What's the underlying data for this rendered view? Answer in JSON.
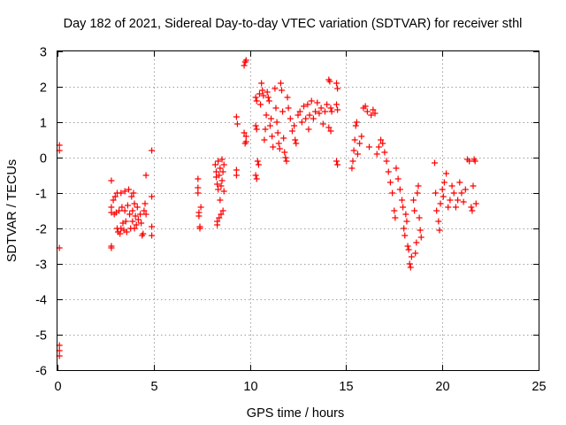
{
  "chart_data": {
    "type": "scatter",
    "title": "Day 182 of 2021, Sidereal Day-to-day VTEC variation (SDTVAR) for receiver sthl",
    "xlabel": "GPS time / hours",
    "ylabel": "SDTVAR / TECUs",
    "xlim": [
      0,
      25
    ],
    "ylim": [
      -6,
      3
    ],
    "xticks": [
      0,
      5,
      10,
      15,
      20,
      25
    ],
    "yticks": [
      -6,
      -5,
      -4,
      -3,
      -2,
      -1,
      0,
      1,
      2,
      3
    ],
    "grid": true,
    "marker": "+",
    "color": "#ff0000",
    "series": [
      {
        "name": "SDTVAR",
        "points": [
          [
            0.1,
            0.35
          ],
          [
            0.1,
            0.2
          ],
          [
            0.1,
            -2.55
          ],
          [
            0.1,
            -5.3
          ],
          [
            0.1,
            -5.45
          ],
          [
            0.1,
            -5.6
          ],
          [
            2.8,
            -0.65
          ],
          [
            2.8,
            -1.4
          ],
          [
            2.8,
            -1.55
          ],
          [
            2.8,
            -2.5
          ],
          [
            2.8,
            -2.55
          ],
          [
            2.9,
            -1.2
          ],
          [
            2.95,
            -1.6
          ],
          [
            3.0,
            -1.1
          ],
          [
            3.05,
            -1.55
          ],
          [
            3.1,
            -1.0
          ],
          [
            3.1,
            -2.0
          ],
          [
            3.15,
            -2.1
          ],
          [
            3.2,
            -1.5
          ],
          [
            3.25,
            -2.15
          ],
          [
            3.3,
            -1.0
          ],
          [
            3.3,
            -2.0
          ],
          [
            3.35,
            -1.4
          ],
          [
            3.4,
            -1.85
          ],
          [
            3.45,
            -2.05
          ],
          [
            3.5,
            -0.95
          ],
          [
            3.5,
            -1.5
          ],
          [
            3.55,
            -1.8
          ],
          [
            3.6,
            -2.1
          ],
          [
            3.65,
            -1.35
          ],
          [
            3.7,
            -0.9
          ],
          [
            3.75,
            -1.6
          ],
          [
            3.8,
            -2.0
          ],
          [
            3.85,
            -1.1
          ],
          [
            3.9,
            -1.5
          ],
          [
            3.9,
            -1.8
          ],
          [
            3.95,
            -1.0
          ],
          [
            4.0,
            -1.3
          ],
          [
            4.0,
            -2.0
          ],
          [
            4.05,
            -1.65
          ],
          [
            4.1,
            -1.9
          ],
          [
            4.15,
            -1.4
          ],
          [
            4.2,
            -1.75
          ],
          [
            4.3,
            -1.6
          ],
          [
            4.35,
            -1.85
          ],
          [
            4.4,
            -2.2
          ],
          [
            4.45,
            -2.15
          ],
          [
            4.5,
            -1.5
          ],
          [
            4.55,
            -1.3
          ],
          [
            4.6,
            -1.6
          ],
          [
            4.6,
            -0.5
          ],
          [
            4.9,
            0.2
          ],
          [
            4.9,
            -1.1
          ],
          [
            4.9,
            -1.95
          ],
          [
            4.9,
            -2.2
          ],
          [
            7.3,
            -0.6
          ],
          [
            7.3,
            -0.85
          ],
          [
            7.3,
            -1.0
          ],
          [
            7.35,
            -1.55
          ],
          [
            7.35,
            -1.65
          ],
          [
            7.4,
            -2.0
          ],
          [
            7.4,
            -1.95
          ],
          [
            7.45,
            -1.4
          ],
          [
            8.2,
            -0.2
          ],
          [
            8.25,
            -0.4
          ],
          [
            8.25,
            -0.55
          ],
          [
            8.3,
            -0.75
          ],
          [
            8.3,
            -1.8
          ],
          [
            8.3,
            -1.9
          ],
          [
            8.35,
            -0.1
          ],
          [
            8.35,
            -0.9
          ],
          [
            8.4,
            -0.5
          ],
          [
            8.4,
            -1.7
          ],
          [
            8.45,
            -0.3
          ],
          [
            8.45,
            -1.2
          ],
          [
            8.5,
            -0.8
          ],
          [
            8.5,
            -1.6
          ],
          [
            8.55,
            -0.05
          ],
          [
            8.55,
            -0.65
          ],
          [
            8.6,
            -0.4
          ],
          [
            8.6,
            -1.5
          ],
          [
            8.65,
            -0.2
          ],
          [
            8.65,
            -0.95
          ],
          [
            9.3,
            1.15
          ],
          [
            9.35,
            0.95
          ],
          [
            9.3,
            -0.35
          ],
          [
            9.3,
            -0.5
          ],
          [
            9.7,
            2.6
          ],
          [
            9.75,
            2.7
          ],
          [
            9.8,
            2.75
          ],
          [
            9.75,
            0.4
          ],
          [
            9.8,
            0.45
          ],
          [
            9.7,
            0.7
          ],
          [
            9.8,
            0.6
          ],
          [
            10.3,
            1.7
          ],
          [
            10.35,
            1.6
          ],
          [
            10.3,
            0.9
          ],
          [
            10.35,
            0.8
          ],
          [
            10.3,
            -0.5
          ],
          [
            10.35,
            -0.6
          ],
          [
            10.4,
            -0.1
          ],
          [
            10.45,
            -0.2
          ],
          [
            10.5,
            1.8
          ],
          [
            10.55,
            1.5
          ],
          [
            10.6,
            2.1
          ],
          [
            10.65,
            1.9
          ],
          [
            10.7,
            1.75
          ],
          [
            10.75,
            0.5
          ],
          [
            10.8,
            0.8
          ],
          [
            10.85,
            1.2
          ],
          [
            10.9,
            1.85
          ],
          [
            10.95,
            1.7
          ],
          [
            11.0,
            1.6
          ],
          [
            11.05,
            0.9
          ],
          [
            11.1,
            1.1
          ],
          [
            11.15,
            0.6
          ],
          [
            11.2,
            0.3
          ],
          [
            11.3,
            1.95
          ],
          [
            11.35,
            1.4
          ],
          [
            11.4,
            1.0
          ],
          [
            11.45,
            0.7
          ],
          [
            11.5,
            0.4
          ],
          [
            11.55,
            0.25
          ],
          [
            11.6,
            2.1
          ],
          [
            11.65,
            1.9
          ],
          [
            11.7,
            1.3
          ],
          [
            11.75,
            0.55
          ],
          [
            11.8,
            0.15
          ],
          [
            11.85,
            0.0
          ],
          [
            11.9,
            -0.1
          ],
          [
            11.95,
            1.7
          ],
          [
            12.0,
            1.4
          ],
          [
            12.1,
            1.1
          ],
          [
            12.2,
            0.75
          ],
          [
            12.3,
            0.9
          ],
          [
            12.35,
            0.5
          ],
          [
            12.4,
            0.4
          ],
          [
            12.5,
            1.2
          ],
          [
            12.6,
            1.3
          ],
          [
            12.7,
            1.0
          ],
          [
            12.8,
            1.45
          ],
          [
            12.9,
            1.1
          ],
          [
            13.0,
            1.5
          ],
          [
            13.05,
            0.8
          ],
          [
            13.1,
            1.2
          ],
          [
            13.2,
            1.6
          ],
          [
            13.3,
            1.1
          ],
          [
            13.4,
            1.3
          ],
          [
            13.5,
            1.55
          ],
          [
            13.6,
            1.25
          ],
          [
            13.7,
            1.4
          ],
          [
            13.8,
            0.95
          ],
          [
            13.9,
            1.3
          ],
          [
            14.0,
            1.5
          ],
          [
            14.1,
            2.2
          ],
          [
            14.15,
            2.15
          ],
          [
            14.2,
            1.4
          ],
          [
            14.25,
            1.3
          ],
          [
            14.1,
            0.85
          ],
          [
            14.2,
            0.75
          ],
          [
            14.5,
            2.1
          ],
          [
            14.55,
            1.95
          ],
          [
            14.5,
            1.5
          ],
          [
            14.55,
            1.35
          ],
          [
            14.5,
            -0.1
          ],
          [
            14.55,
            -0.2
          ],
          [
            15.3,
            -0.3
          ],
          [
            15.35,
            -0.1
          ],
          [
            15.4,
            0.2
          ],
          [
            15.45,
            0.5
          ],
          [
            15.5,
            0.9
          ],
          [
            15.55,
            1.0
          ],
          [
            15.6,
            0.1
          ],
          [
            15.7,
            0.4
          ],
          [
            15.8,
            0.6
          ],
          [
            15.9,
            1.4
          ],
          [
            16.0,
            1.45
          ],
          [
            16.1,
            1.3
          ],
          [
            16.2,
            0.3
          ],
          [
            16.3,
            1.2
          ],
          [
            16.4,
            1.35
          ],
          [
            16.5,
            1.25
          ],
          [
            16.6,
            0.1
          ],
          [
            16.7,
            0.3
          ],
          [
            16.8,
            0.5
          ],
          [
            16.9,
            0.4
          ],
          [
            17.0,
            0.15
          ],
          [
            17.1,
            -0.1
          ],
          [
            17.2,
            -0.4
          ],
          [
            17.3,
            -0.7
          ],
          [
            17.4,
            -1.0
          ],
          [
            17.5,
            -1.5
          ],
          [
            17.55,
            -1.7
          ],
          [
            17.6,
            -0.3
          ],
          [
            17.7,
            -0.6
          ],
          [
            17.8,
            -0.9
          ],
          [
            17.9,
            -1.2
          ],
          [
            17.95,
            -1.4
          ],
          [
            18.0,
            -2.0
          ],
          [
            18.05,
            -2.2
          ],
          [
            18.1,
            -1.6
          ],
          [
            18.15,
            -1.8
          ],
          [
            18.2,
            -2.5
          ],
          [
            18.25,
            -2.6
          ],
          [
            18.3,
            -3.0
          ],
          [
            18.35,
            -3.1
          ],
          [
            18.4,
            -2.8
          ],
          [
            18.5,
            -1.2
          ],
          [
            18.55,
            -1.5
          ],
          [
            18.6,
            -2.7
          ],
          [
            18.65,
            -2.4
          ],
          [
            18.7,
            -1.0
          ],
          [
            18.75,
            -0.8
          ],
          [
            18.8,
            -1.7
          ],
          [
            18.85,
            -2.05
          ],
          [
            18.9,
            -2.25
          ],
          [
            19.6,
            -0.15
          ],
          [
            19.65,
            -1.0
          ],
          [
            19.7,
            -1.5
          ],
          [
            19.8,
            -1.8
          ],
          [
            19.85,
            -2.05
          ],
          [
            19.9,
            -1.3
          ],
          [
            20.0,
            -0.9
          ],
          [
            20.05,
            -1.1
          ],
          [
            20.1,
            -0.7
          ],
          [
            20.2,
            -0.45
          ],
          [
            20.3,
            -1.4
          ],
          [
            20.4,
            -1.2
          ],
          [
            20.5,
            -0.8
          ],
          [
            20.6,
            -1.0
          ],
          [
            20.7,
            -1.4
          ],
          [
            20.8,
            -1.2
          ],
          [
            20.9,
            -0.7
          ],
          [
            21.0,
            -1.0
          ],
          [
            21.1,
            -1.25
          ],
          [
            21.2,
            -0.9
          ],
          [
            21.3,
            -0.05
          ],
          [
            21.4,
            -0.1
          ],
          [
            21.5,
            -1.4
          ],
          [
            21.55,
            -1.5
          ],
          [
            21.6,
            -0.8
          ],
          [
            21.65,
            -0.05
          ],
          [
            21.7,
            -0.1
          ],
          [
            21.75,
            -1.3
          ]
        ]
      }
    ]
  }
}
